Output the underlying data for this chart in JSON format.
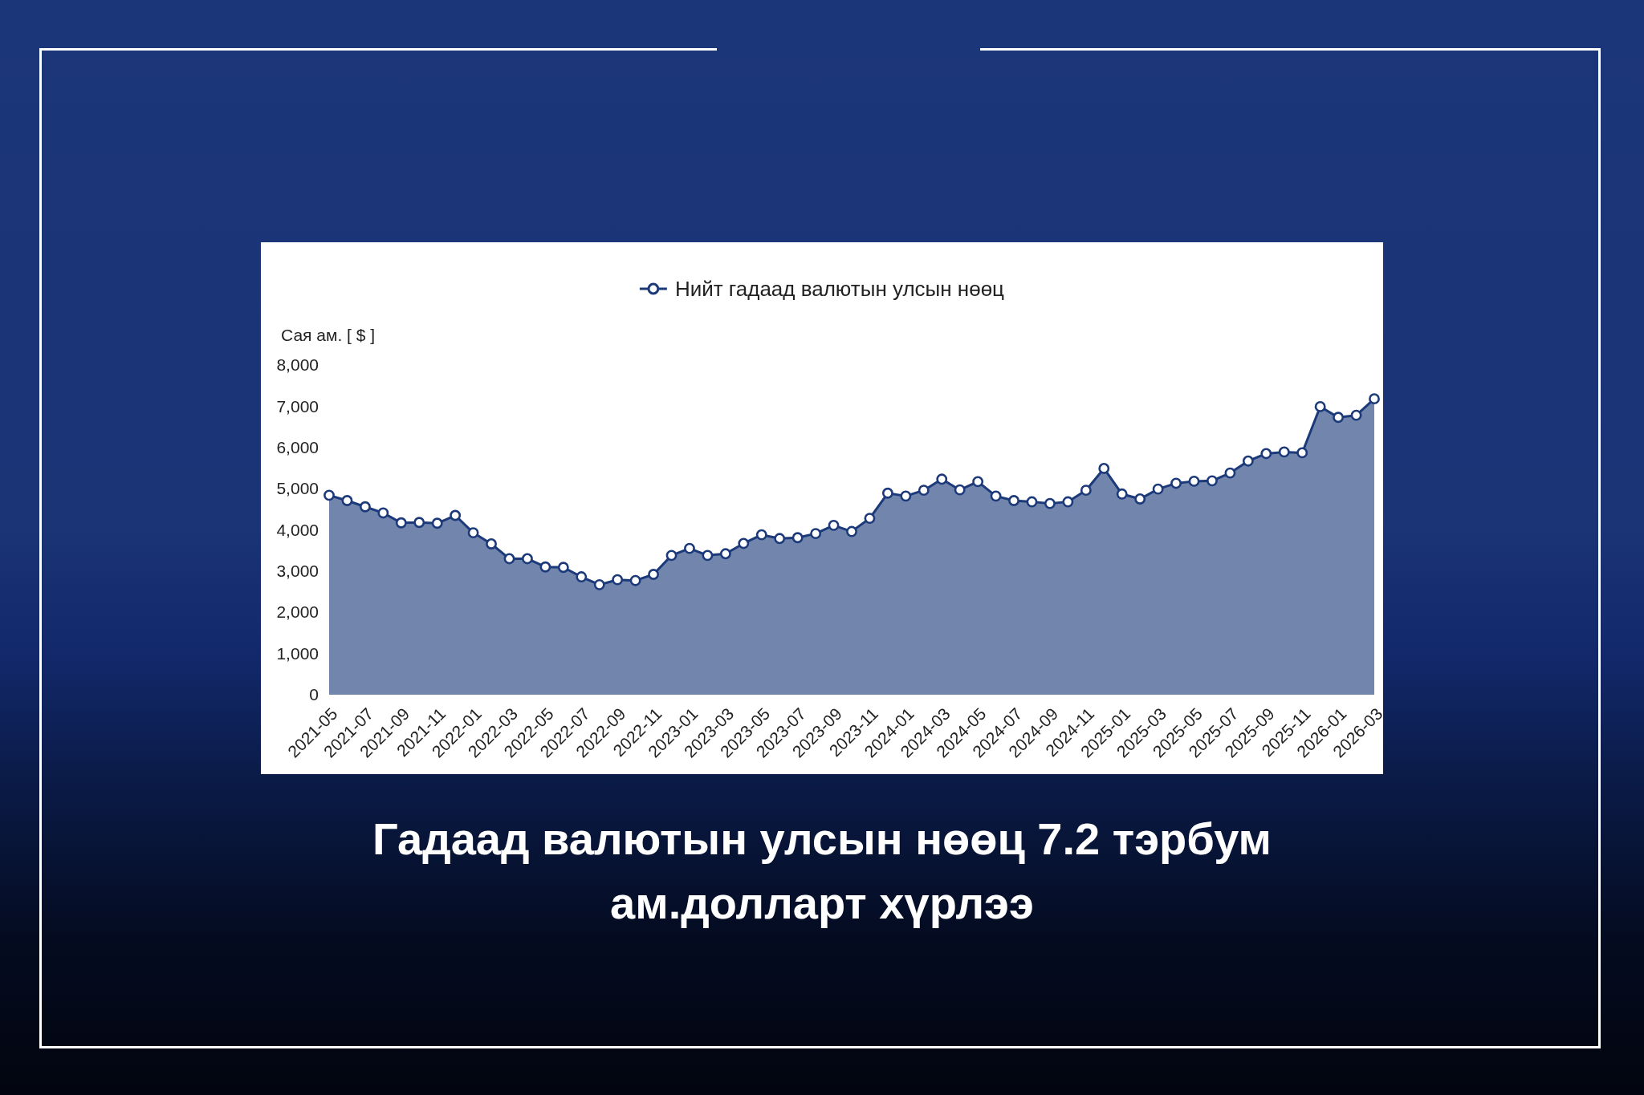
{
  "chart_data": {
    "type": "area",
    "title": "Гадаад валютын улсын нөөц 7.2 тэрбум ам.долларт хүрлээ",
    "ylabel": "Сая ам. [ $ ]",
    "categories": [
      "2021-05",
      null,
      "2021-07",
      null,
      "2021-09",
      null,
      "2021-11",
      null,
      "2022-01",
      null,
      "2022-03",
      null,
      "2022-05",
      null,
      "2022-07",
      null,
      "2022-09",
      null,
      "2022-11",
      null,
      "2023-01",
      null,
      "2023-03",
      null,
      "2023-05",
      null,
      "2023-07",
      null,
      "2023-09",
      null,
      "2023-11",
      null,
      "2024-01",
      null,
      "2024-03",
      null,
      "2024-05",
      null,
      "2024-07",
      null,
      "2024-09",
      null,
      "2024-11",
      null,
      "2025-01",
      null,
      "2025-03",
      null,
      "2025-05",
      null,
      "2025-07",
      null,
      "2025-09",
      null,
      "2025-11",
      null,
      "2026-01",
      null,
      "2026-03"
    ],
    "series": [
      {
        "name": "Нийт гадаад валютын улсын нөөц",
        "color": "#1c3a7a",
        "values": [
          4840,
          4710,
          4560,
          4410,
          4170,
          4180,
          4160,
          4350,
          3930,
          3660,
          3300,
          3300,
          3100,
          3090,
          2860,
          2670,
          2790,
          2770,
          2920,
          3380,
          3550,
          3380,
          3420,
          3670,
          3880,
          3790,
          3810,
          3910,
          4110,
          3960,
          4280,
          4890,
          4820,
          4960,
          5230,
          4970,
          5170,
          4820,
          4710,
          4680,
          4640,
          4680,
          4960,
          5490,
          4870,
          4750,
          4990,
          5130,
          5180,
          5190,
          5380,
          5670,
          5850,
          5890,
          5870,
          6990,
          6730,
          6780,
          7180
        ]
      }
    ],
    "ylim": [
      0,
      8000
    ],
    "yticks": [
      0,
      {
        "value": 1000,
        "label": "1,000"
      },
      {
        "value": 2000,
        "label": "2,000"
      },
      {
        "value": 3000,
        "label": "3,000"
      },
      {
        "value": 4000,
        "label": "4,000"
      },
      {
        "value": 5000,
        "label": "5,000"
      },
      {
        "value": 6000,
        "label": "6,000"
      },
      {
        "value": 7000,
        "label": "7,000"
      },
      {
        "value": 8000,
        "label": "8,000"
      }
    ],
    "legend": "top",
    "marker": "circle",
    "line_style": "solid"
  }
}
